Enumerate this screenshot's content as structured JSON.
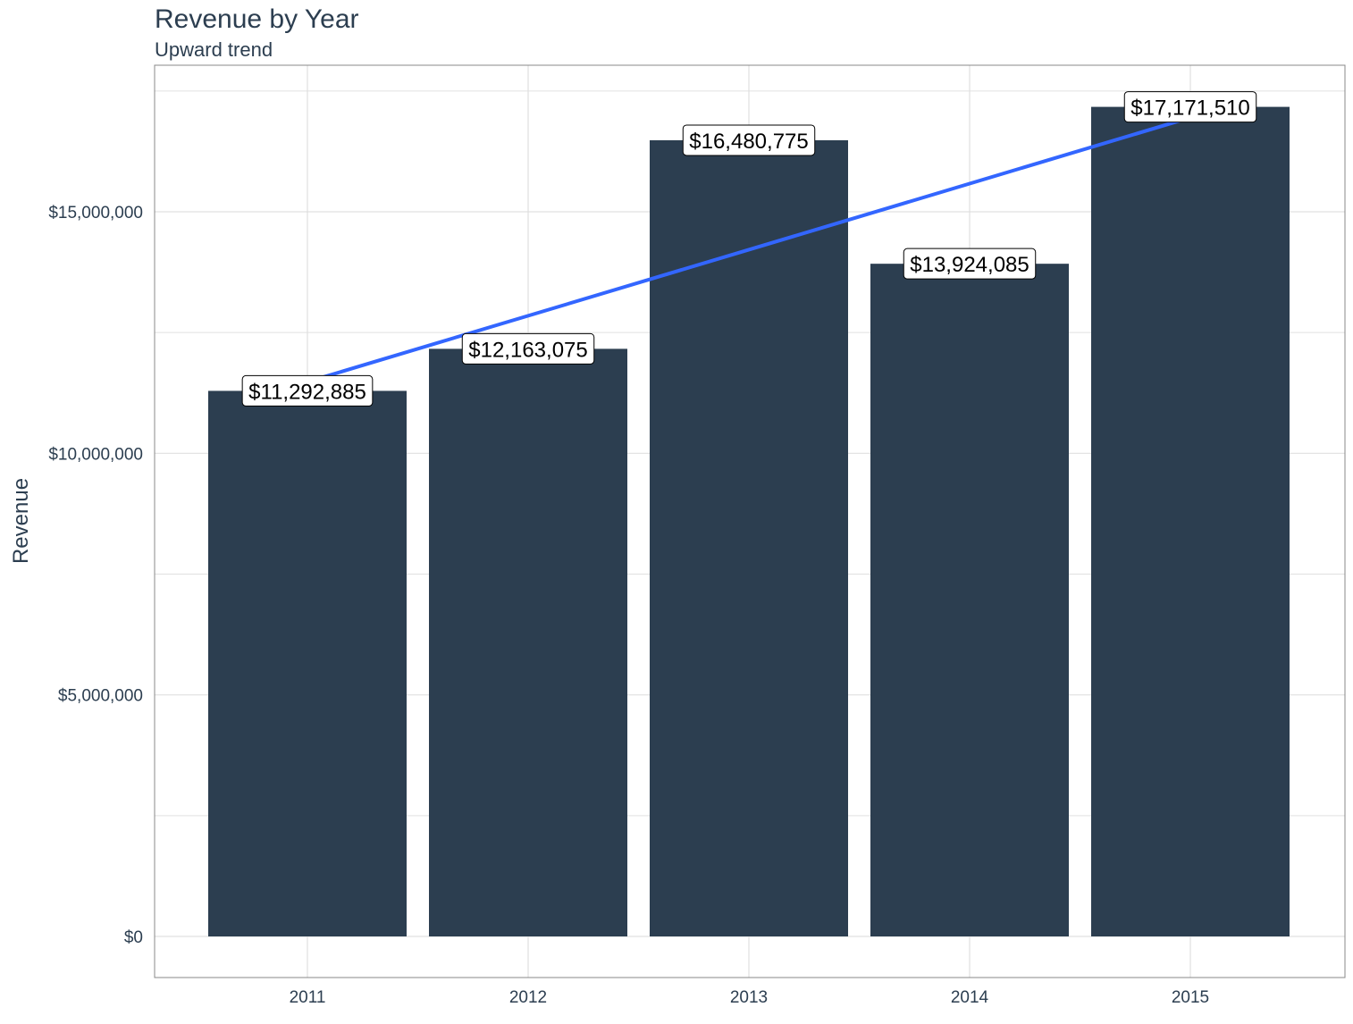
{
  "chart_data": {
    "type": "bar",
    "title": "Revenue by Year",
    "subtitle": "Upward trend",
    "xlabel": "",
    "ylabel": "Revenue",
    "categories": [
      "2011",
      "2012",
      "2013",
      "2014",
      "2015"
    ],
    "values": [
      11292885,
      12163075,
      16480775,
      13924085,
      17171510
    ],
    "data_labels": [
      "$11,292,885",
      "$12,163,075",
      "$16,480,775",
      "$13,924,085",
      "$17,171,510"
    ],
    "ylim": [
      -850000,
      18000000
    ],
    "yticks": [
      0,
      5000000,
      10000000,
      15000000
    ],
    "ytick_labels": [
      "$0",
      "$5,000,000",
      "$10,000,000",
      "$15,000,000"
    ],
    "grid": true,
    "legend": "none",
    "trend_line": {
      "type": "linear",
      "start": {
        "x": "2011",
        "y": 11480000
      },
      "end": {
        "x": "2015",
        "y": 16950000
      }
    },
    "colors": {
      "bar": "#2c3e50",
      "trend": "#3366ff",
      "grid": "#e0e0e0",
      "panel_border": "#888888",
      "text": "#2c3e50"
    }
  }
}
